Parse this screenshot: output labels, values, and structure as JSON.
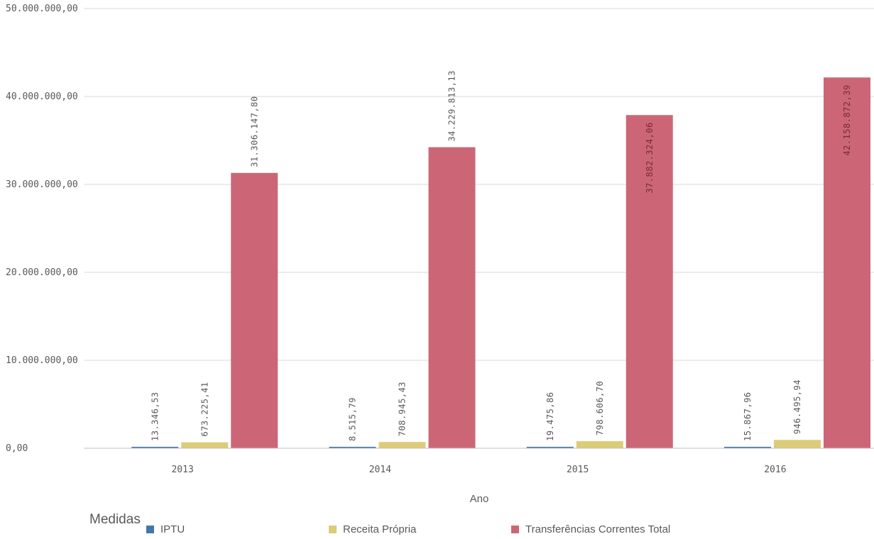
{
  "chart_data": {
    "type": "bar",
    "xlabel": "Ano",
    "categories": [
      "2013",
      "2014",
      "2015",
      "2016"
    ],
    "ylim": [
      0,
      50000000
    ],
    "y_ticks": [
      "0,00",
      "10.000.000,00",
      "20.000.000,00",
      "30.000.000,00",
      "40.000.000,00",
      "50.000.000,00"
    ],
    "grid": true,
    "legend_title": "Medidas",
    "legend_position": "bottom",
    "series": [
      {
        "name": "IPTU",
        "color": "#4477aa",
        "values": [
          13346.53,
          8515.79,
          19475.86,
          15867.96
        ],
        "labels": [
          "13.346,53",
          "8.515,79",
          "19.475,86",
          "15.867,96"
        ]
      },
      {
        "name": "Receita Própria",
        "color": "#ddcc77",
        "values": [
          673225.41,
          708945.43,
          798606.7,
          946495.94
        ],
        "labels": [
          "673.225,41",
          "708.945,43",
          "798.606,70",
          "946.495,94"
        ]
      },
      {
        "name": "Transferências Correntes Total",
        "color": "#cc6677",
        "values": [
          31306147.8,
          34229813.13,
          37882324.06,
          42158872.39
        ],
        "labels": [
          "31.306.147,80",
          "34.229.813,13",
          "37.882.324,06",
          "42.158.872,39"
        ]
      }
    ]
  }
}
